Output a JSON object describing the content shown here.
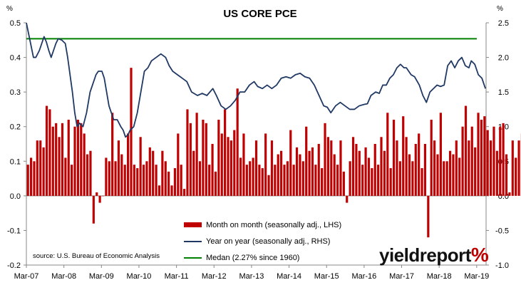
{
  "chart_data": {
    "type": "bar+line",
    "title": "US CORE PCE",
    "y_left_unit": "%",
    "y_right_unit": "%",
    "y_left_ticks": [
      "-0.2",
      "-0.1",
      "0.0",
      "0.1",
      "0.2",
      "0.3",
      "0.4",
      "0.5"
    ],
    "y_right_ticks": [
      "-1.0",
      "-0.5",
      "0.0",
      "0.5",
      "1.0",
      "1.5",
      "2.0",
      "2.5"
    ],
    "ylim_left": [
      -0.2,
      0.5
    ],
    "ylim_right": [
      -1.0,
      2.5
    ],
    "x_ticks": [
      "Mar-07",
      "Mar-08",
      "Mar-09",
      "Mar-10",
      "Mar-11",
      "Mar-12",
      "Mar-13",
      "Mar-14",
      "Mar-15",
      "Mar-16",
      "Mar-17",
      "Mar-18",
      "Mar-19"
    ],
    "x_start": "Mar-07",
    "grid": false,
    "legend_position": "bottom-center",
    "series": [
      {
        "name": "Month on month (seasonally adj., LHS)",
        "type": "bar",
        "axis": "left",
        "color": "#c00000",
        "values": [
          0.09,
          0.11,
          0.1,
          0.16,
          0.16,
          0.14,
          0.26,
          0.25,
          0.2,
          0.21,
          0.17,
          0.21,
          0.11,
          0.22,
          0.09,
          0.2,
          0.22,
          0.21,
          0.18,
          0.12,
          0.13,
          -0.08,
          0.01,
          -0.02,
          0.0,
          0.11,
          0.1,
          0.24,
          0.1,
          0.16,
          0.12,
          0.09,
          0.18,
          0.37,
          0.09,
          0.08,
          0.17,
          0.09,
          0.1,
          0.14,
          0.13,
          0.09,
          0.03,
          0.13,
          0.1,
          0.07,
          0.03,
          0.08,
          0.18,
          0.09,
          0.02,
          0.25,
          0.21,
          0.13,
          0.24,
          0.1,
          0.22,
          0.21,
          0.09,
          0.15,
          0.07,
          0.22,
          0.18,
          0.25,
          0.17,
          0.16,
          0.19,
          0.31,
          0.11,
          0.18,
          0.09,
          0.1,
          0.11,
          0.16,
          0.09,
          0.08,
          0.18,
          0.06,
          0.16,
          0.09,
          0.12,
          0.13,
          0.09,
          0.1,
          0.19,
          0.09,
          0.14,
          0.12,
          0.1,
          0.2,
          0.13,
          0.14,
          0.09,
          0.15,
          0.08,
          0.21,
          0.17,
          0.16,
          0.12,
          0.09,
          0.16,
          0.07,
          -0.02,
          0.1,
          0.17,
          0.15,
          0.13,
          0.09,
          0.14,
          0.11,
          0.08,
          0.15,
          0.09,
          0.17,
          0.13,
          0.24,
          0.08,
          0.22,
          0.16,
          0.1,
          0.23,
          0.17,
          0.12,
          0.1,
          0.15,
          0.18,
          0.08,
          0.15,
          -0.12,
          0.22,
          0.16,
          0.12,
          0.24,
          0.1,
          0.1,
          0.13,
          0.12,
          0.16,
          0.11,
          0.2,
          0.26,
          0.16,
          0.2,
          0.14,
          0.24,
          0.22,
          0.23,
          0.19,
          0.16,
          0.2,
          0.13,
          0.2,
          0.21,
          0.12,
          0.01,
          0.16,
          0.11,
          0.16,
          0.18,
          0.19,
          0.07,
          0.05,
          0.04
        ]
      },
      {
        "name": "Year on year (seasonally adj., RHS)",
        "type": "line",
        "axis": "right",
        "color": "#1f3864",
        "points": [
          [
            0,
            2.5
          ],
          [
            3,
            2.25
          ],
          [
            6,
            2.0
          ],
          [
            8,
            2.0
          ],
          [
            11,
            2.1
          ],
          [
            13,
            2.2
          ],
          [
            15,
            2.3
          ],
          [
            17,
            2.22
          ],
          [
            19,
            2.1
          ],
          [
            21,
            2.0
          ],
          [
            23,
            2.1
          ],
          [
            25,
            2.2
          ],
          [
            27,
            2.27
          ],
          [
            30,
            2.25
          ],
          [
            33,
            2.2
          ],
          [
            35,
            2.0
          ],
          [
            37,
            1.75
          ],
          [
            39,
            1.5
          ],
          [
            41,
            1.2
          ],
          [
            43,
            1.0
          ],
          [
            45,
            1.05
          ],
          [
            48,
            1.0
          ],
          [
            51,
            1.2
          ],
          [
            54,
            1.5
          ],
          [
            56,
            1.6
          ],
          [
            59,
            1.75
          ],
          [
            61,
            1.8
          ],
          [
            64,
            1.8
          ],
          [
            66,
            1.7
          ],
          [
            68,
            1.5
          ],
          [
            70,
            1.3
          ],
          [
            72,
            1.2
          ],
          [
            74,
            1.1
          ],
          [
            77,
            1.1
          ],
          [
            80,
            1.0
          ],
          [
            82,
            0.95
          ],
          [
            84,
            0.85
          ],
          [
            86,
            0.88
          ],
          [
            88,
            0.95
          ],
          [
            91,
            1.0
          ],
          [
            94,
            1.2
          ],
          [
            97,
            1.5
          ],
          [
            100,
            1.8
          ],
          [
            103,
            1.85
          ],
          [
            106,
            1.95
          ],
          [
            110,
            2.0
          ],
          [
            114,
            2.05
          ],
          [
            118,
            2.0
          ],
          [
            121,
            1.88
          ],
          [
            124,
            1.8
          ],
          [
            128,
            1.75
          ],
          [
            132,
            1.7
          ],
          [
            136,
            1.65
          ],
          [
            140,
            1.5
          ],
          [
            145,
            1.45
          ],
          [
            149,
            1.48
          ],
          [
            153,
            1.45
          ],
          [
            158,
            1.55
          ],
          [
            161,
            1.45
          ],
          [
            165,
            1.3
          ],
          [
            169,
            1.25
          ],
          [
            173,
            1.3
          ],
          [
            177,
            1.38
          ],
          [
            181,
            1.5
          ],
          [
            185,
            1.5
          ],
          [
            189,
            1.6
          ],
          [
            193,
            1.65
          ],
          [
            196,
            1.58
          ],
          [
            200,
            1.55
          ],
          [
            204,
            1.6
          ],
          [
            208,
            1.55
          ],
          [
            212,
            1.6
          ],
          [
            216,
            1.7
          ],
          [
            220,
            1.72
          ],
          [
            224,
            1.7
          ],
          [
            228,
            1.75
          ],
          [
            232,
            1.77
          ],
          [
            236,
            1.72
          ],
          [
            240,
            1.7
          ],
          [
            244,
            1.6
          ],
          [
            248,
            1.45
          ],
          [
            252,
            1.3
          ],
          [
            255,
            1.28
          ],
          [
            258,
            1.2
          ],
          [
            262,
            1.3
          ],
          [
            266,
            1.35
          ],
          [
            270,
            1.3
          ],
          [
            274,
            1.25
          ],
          [
            278,
            1.25
          ],
          [
            282,
            1.3
          ],
          [
            286,
            1.32
          ],
          [
            289,
            1.33
          ],
          [
            292,
            1.45
          ],
          [
            296,
            1.5
          ],
          [
            299,
            1.48
          ],
          [
            302,
            1.6
          ],
          [
            305,
            1.6
          ],
          [
            308,
            1.7
          ],
          [
            311,
            1.75
          ],
          [
            314,
            1.85
          ],
          [
            317,
            1.9
          ],
          [
            320,
            1.85
          ],
          [
            322,
            1.85
          ],
          [
            326,
            1.75
          ],
          [
            329,
            1.72
          ],
          [
            333,
            1.6
          ],
          [
            336,
            1.45
          ],
          [
            339,
            1.35
          ],
          [
            342,
            1.5
          ],
          [
            345,
            1.55
          ],
          [
            348,
            1.6
          ],
          [
            351,
            1.58
          ],
          [
            354,
            1.6
          ],
          [
            357,
            1.88
          ],
          [
            360,
            1.95
          ],
          [
            363,
            1.85
          ],
          [
            366,
            1.95
          ],
          [
            369,
            2.0
          ],
          [
            372,
            1.88
          ],
          [
            375,
            1.85
          ],
          [
            377,
            1.95
          ],
          [
            380,
            1.9
          ],
          [
            383,
            1.75
          ],
          [
            386,
            1.7
          ],
          [
            389,
            1.55
          ]
        ]
      },
      {
        "name": "Medan (2.27% since 1960)",
        "type": "line",
        "axis": "right",
        "color": "#008000",
        "value": 2.27
      }
    ]
  },
  "source": "source: U.S. Bureau of Economic Analysis",
  "logo": {
    "left": "yield",
    "right": "report",
    "pct": "%"
  }
}
